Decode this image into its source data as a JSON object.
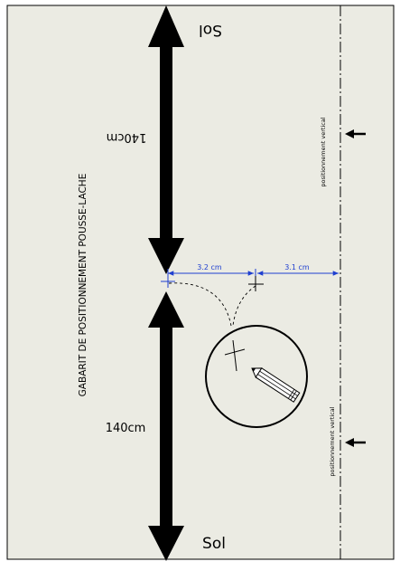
{
  "drawing": {
    "title": "GABARIT DE POSITIONNEMENT POUSSE-LACHE",
    "top_floor_label": "Sol",
    "bottom_floor_label": "Sol",
    "top_distance_label": "140cm",
    "bottom_distance_label": "140cm",
    "dimension_left": "3.2 cm",
    "dimension_right": "3.1 cm",
    "vertical_positioning_top": "positionnement vertical",
    "vertical_positioning_bottom": "positionnement vertical",
    "colors": {
      "paper": "#ebebe3",
      "ink": "#000000",
      "dimension": "#1f3fd0"
    }
  }
}
